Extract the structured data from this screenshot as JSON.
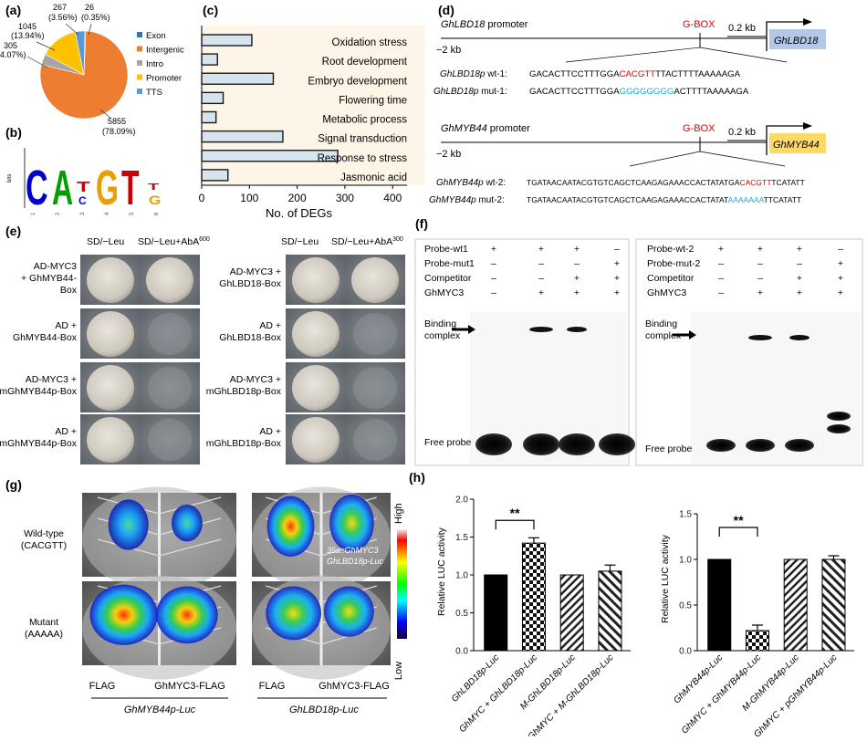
{
  "panel_labels": {
    "a": "(a)",
    "b": "(b)",
    "c": "(c)",
    "d": "(d)",
    "e": "(e)",
    "f": "(f)",
    "g": "(g)",
    "h": "(h)"
  },
  "panel_a": {
    "slices": [
      {
        "label": "Exon",
        "count": "26",
        "pct": "(0.35%)",
        "value": 0.35,
        "color": "#2e75b6"
      },
      {
        "label": "Intergenic",
        "count": "5855",
        "pct": "(78.09%)",
        "value": 78.09,
        "color": "#ed7d31"
      },
      {
        "label": "Intro",
        "count": "305",
        "pct": "4.07%)",
        "value": 4.07,
        "color": "#a5a5a5"
      },
      {
        "label": "Promoter",
        "count": "1045",
        "pct": "(13.94%)",
        "value": 13.94,
        "color": "#ffc000"
      },
      {
        "label": "TTS",
        "count": "267",
        "pct": "(3.56%)",
        "value": 3.56,
        "color": "#5b9bd5"
      }
    ]
  },
  "panel_b": {
    "axis_label": "bits",
    "positions": [
      "1",
      "2",
      "3",
      "4",
      "5",
      "6"
    ],
    "letters": [
      "C",
      "A",
      "T",
      "G",
      "T",
      "T"
    ]
  },
  "chart_data": {
    "type": "bar",
    "orientation": "horizontal",
    "categories": [
      "Oxidation stress",
      "Root development",
      "Embryo development",
      "Flowering time",
      "Metabolic process",
      "Signal transduction",
      "Response to stress",
      "Jasmonic acid"
    ],
    "values": [
      105,
      33,
      150,
      45,
      30,
      170,
      285,
      55
    ],
    "xlabel": "No. of DEGs",
    "xticks": [
      "0",
      "100",
      "200",
      "300",
      "400"
    ],
    "xlim": [
      0,
      400
    ],
    "bar_color": "#d6e4ef",
    "background": "#fdf5e8"
  },
  "panel_d": {
    "scale": "0.2 kb",
    "gbox": "G-BOX",
    "minus2kb": "−2 kb",
    "lbd": {
      "promoter_italic": "GhLBD18",
      "promoter_rest": " promoter",
      "gene": "GhLBD18",
      "gene_color": "#b4c7e7",
      "wt_label": "GhLBD18p",
      "wt_suffix": " wt-1:",
      "wt_pre": "GACACTTCCTTTGGA",
      "wt_mid": "CACGTT",
      "wt_post": "TTACTTTTAAAAAGA",
      "mut_label": "GhLBD18p",
      "mut_suffix": " mut-1:",
      "mut_pre": "GACACTTCCTTTGGA",
      "mut_mid": "GGGGGGGG",
      "mut_post": "ACTTTTAAAAAGA"
    },
    "myb": {
      "promoter_italic": "GhMYB44",
      "promoter_rest": " promoter",
      "gene": "GhMYB44",
      "gene_color": "#ffd966",
      "wt_label": "GhMYB44p",
      "wt_suffix": " wt-2:",
      "wt_pre": "TGATAACAATACGTGTCAGCTCAAGAGAAACCACTATATGA",
      "wt_mid": "CACGTT",
      "wt_post": "TCATATT",
      "mut_label": "GhMYB44p",
      "mut_suffix": " mut-2:",
      "mut_pre": "TGATAACAATACGTGTCAGCTCAAGAGAAACCACTATAT",
      "mut_mid": "AAAAAAA",
      "mut_post": "TTCATATT"
    }
  },
  "panel_e": {
    "left_headers": [
      "SD/−Leu",
      "SD/−Leu+AbA"
    ],
    "left_sup": "600",
    "right_headers": [
      "SD/−Leu",
      "SD/−Leu+AbA"
    ],
    "right_sup": "300",
    "left_rows": [
      [
        "AD-MYC3",
        "+ GhMYB44-",
        "Box"
      ],
      [
        "AD +",
        "GhMYB44-Box"
      ],
      [
        "AD-MYC3 +",
        "mGhMYB44p-Box"
      ],
      [
        "AD +",
        "mGhMYB44p-Box"
      ]
    ],
    "right_rows": [
      [
        "AD-MYC3 +",
        "GhLBD18-Box"
      ],
      [
        "AD +",
        "GhLBD18-Box"
      ],
      [
        "AD-MYC3 +",
        "mGhLBD18p-Box"
      ],
      [
        "AD +",
        "mGhLBD18p-Box"
      ]
    ],
    "left_growth": [
      true,
      false,
      false,
      false
    ],
    "right_growth": [
      true,
      false,
      false,
      false
    ]
  },
  "panel_f": {
    "left": {
      "rows": [
        {
          "label": "Probe-wt1",
          "cells": [
            "+",
            "+",
            "+",
            "–"
          ]
        },
        {
          "label": "Probe-mut1",
          "cells": [
            "–",
            "–",
            "–",
            "+"
          ]
        },
        {
          "label": "Competitor",
          "cells": [
            "–",
            "–",
            "+",
            "+"
          ]
        },
        {
          "label": "GhMYC3",
          "cells": [
            "–",
            "+",
            "+",
            "+"
          ]
        }
      ],
      "binding": [
        "Binding",
        "complex"
      ],
      "free": "Free probe"
    },
    "right": {
      "rows": [
        {
          "label": "Probe-wt-2",
          "cells": [
            "+",
            "+",
            "+",
            "–"
          ]
        },
        {
          "label": "Probe-mut-2",
          "cells": [
            "–",
            "–",
            "–",
            "+"
          ]
        },
        {
          "label": "Competitor",
          "cells": [
            "–",
            "–",
            "+",
            "+"
          ]
        },
        {
          "label": "GhMYC3",
          "cells": [
            "–",
            "+",
            "+",
            "+"
          ]
        }
      ],
      "binding": [
        "Binding",
        "complex"
      ],
      "free": "Free probe"
    }
  },
  "panel_g": {
    "row_labels": [
      [
        "Wild-type",
        "(CACGTT)"
      ],
      [
        "Mutant",
        "(AAAAA)"
      ]
    ],
    "col_labels": [
      "FLAG",
      "GhMYC3-FLAG",
      "FLAG",
      "GhMYC3-FLAG"
    ],
    "group_labels": [
      "GhMYB44p-Luc",
      "GhLBD18p-Luc"
    ],
    "inset": [
      "35s::GhMYC3",
      "GhLBD18p-Luc"
    ],
    "scale_high": "High",
    "scale_low": "Low"
  },
  "panel_h": {
    "ylabel": "Relative LUC activity",
    "left": {
      "ylim": [
        0,
        2.0
      ],
      "yticks": [
        "0.0",
        "0.5",
        "1.0",
        "1.5",
        "2.0"
      ],
      "categories": [
        "GhLBD18p-Luc",
        "GhMYC + GhLBD18p-Luc",
        "M-GhLBD18p-Luc",
        "GhMYC + M-GhLBD18p-Luc"
      ],
      "values": [
        1.0,
        1.42,
        1.0,
        1.05
      ],
      "errors": [
        0,
        0.07,
        0,
        0.08
      ],
      "sig": "**"
    },
    "right": {
      "ylim": [
        0,
        1.5
      ],
      "yticks": [
        "0.0",
        "0.5",
        "1.0",
        "1.5"
      ],
      "categories": [
        "GhMYB44p-Luc",
        "GhMYC + GhMYB44p-Luc",
        "M-GhMYB44p-Luc",
        "GhMYC + pGhMYB44p-Luc"
      ],
      "values": [
        1.0,
        0.22,
        1.0,
        1.0
      ],
      "errors": [
        0,
        0.06,
        0,
        0.04
      ],
      "sig": "**"
    }
  }
}
